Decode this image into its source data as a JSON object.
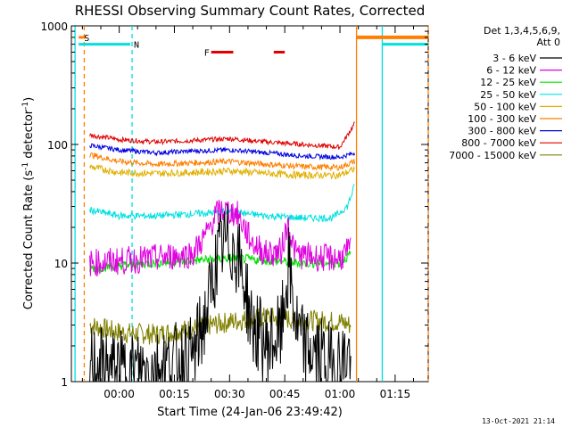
{
  "chart_data": {
    "type": "line",
    "title": "RHESSI Observing Summary Count Rates, Corrected",
    "xlabel": "Start Time (24-Jan-06 23:49:42)",
    "ylabel_main": "Corrected Count Rate (s",
    "ylabel_sup1": "-1",
    "ylabel_mid": " detector",
    "ylabel_sup2": "-1",
    "ylabel_end": ")",
    "yscale": "log",
    "ylim": [
      1,
      1000
    ],
    "xlim_minutes": [
      -13,
      84
    ],
    "x_ticks": [
      {
        "label": "00:00",
        "t": 0
      },
      {
        "label": "00:15",
        "t": 15
      },
      {
        "label": "00:30",
        "t": 30
      },
      {
        "label": "00:45",
        "t": 45
      },
      {
        "label": "01:00",
        "t": 60
      },
      {
        "label": "01:15",
        "t": 75
      }
    ],
    "y_ticks": [
      {
        "label": "1",
        "v": 1
      },
      {
        "label": "10",
        "v": 10
      },
      {
        "label": "100",
        "v": 100
      },
      {
        "label": "1000",
        "v": 1000
      }
    ],
    "legend": {
      "header1": "Det 1,3,4,5,6,9,",
      "header2": "Att 0",
      "placement": "right"
    },
    "series": [
      {
        "name": "3 - 6 keV",
        "color": "#000000",
        "x": [
          -8,
          0,
          10,
          20,
          24,
          26,
          28,
          30,
          32,
          34,
          36,
          40,
          44,
          45,
          46,
          47,
          48,
          50,
          56,
          60,
          63
        ],
        "y": [
          1.4,
          1.2,
          1.3,
          1.6,
          4,
          9,
          14,
          15,
          12,
          7,
          3,
          2,
          2.5,
          5,
          9,
          6,
          3,
          2,
          1.5,
          1.4,
          1.8
        ]
      },
      {
        "name": "6 - 12 keV",
        "color": "#e000e0",
        "x": [
          -8,
          2,
          10,
          20,
          24,
          26,
          28,
          30,
          32,
          34,
          36,
          40,
          44,
          45,
          46,
          47,
          48,
          50,
          56,
          60,
          63
        ],
        "y": [
          10,
          10.5,
          11,
          12,
          18,
          25,
          28,
          27,
          26,
          20,
          15,
          12,
          12.5,
          17,
          22,
          15,
          12,
          11.5,
          11,
          11,
          13
        ]
      },
      {
        "name": "12 - 25 keV",
        "color": "#00e000",
        "x": [
          -8,
          0,
          10,
          20,
          30,
          40,
          50,
          60,
          63
        ],
        "y": [
          9,
          9.5,
          10,
          10.5,
          11,
          10.5,
          10,
          10,
          12
        ]
      },
      {
        "name": "25 - 50 keV",
        "color": "#00e0e0",
        "x": [
          -8,
          0,
          10,
          20,
          30,
          40,
          50,
          58,
          62,
          64
        ],
        "y": [
          28,
          25,
          25,
          26,
          27,
          25,
          24,
          24,
          30,
          45
        ]
      },
      {
        "name": "50 - 100 keV",
        "color": "#e0b000",
        "x": [
          -8,
          0,
          10,
          20,
          30,
          40,
          50,
          60,
          64
        ],
        "y": [
          65,
          58,
          57,
          58,
          60,
          57,
          55,
          55,
          62
        ]
      },
      {
        "name": "100 - 300 keV",
        "color": "#ff7f00",
        "x": [
          -8,
          0,
          10,
          20,
          30,
          40,
          50,
          60,
          64
        ],
        "y": [
          82,
          72,
          68,
          70,
          72,
          68,
          65,
          64,
          72
        ]
      },
      {
        "name": "300 - 800 keV",
        "color": "#0000e0",
        "x": [
          -8,
          0,
          10,
          20,
          30,
          40,
          50,
          60,
          64
        ],
        "y": [
          98,
          90,
          85,
          88,
          90,
          85,
          80,
          78,
          85
        ]
      },
      {
        "name": "800 - 7000 keV",
        "color": "#e00000",
        "x": [
          -8,
          0,
          10,
          20,
          30,
          40,
          50,
          60,
          64
        ],
        "y": [
          120,
          110,
          105,
          108,
          112,
          105,
          100,
          95,
          150
        ]
      },
      {
        "name": "7000 - 15000 keV",
        "color": "#808000",
        "x": [
          -8,
          0,
          10,
          20,
          30,
          40,
          50,
          60,
          63
        ],
        "y": [
          3,
          2.6,
          2.5,
          2.8,
          3.2,
          3.5,
          3.3,
          3.2,
          3
        ]
      }
    ],
    "flags": [
      {
        "label": "S",
        "color": "#ff7f00",
        "x": [
          -11,
          -9
        ],
        "v": 800
      },
      {
        "label": "N",
        "color": "#00e0e0",
        "x": [
          -11,
          3
        ],
        "v": 700
      },
      {
        "label": "F",
        "color": "#e00000",
        "x": [
          25,
          31
        ],
        "v": 600
      },
      {
        "label": "",
        "color": "#e00000",
        "x": [
          42,
          45
        ],
        "v": 600
      }
    ],
    "vertical_lines": [
      {
        "t": -12,
        "color": "#00e0e0",
        "style": "solid"
      },
      {
        "t": -9.5,
        "color": "#ff7f00",
        "style": "dashed"
      },
      {
        "t": 3.5,
        "color": "#00e0e0",
        "style": "dashed"
      },
      {
        "t": 64.5,
        "color": "#ff7f00",
        "style": "solid"
      },
      {
        "t": 71.5,
        "color": "#00e0e0",
        "style": "solid"
      },
      {
        "t": 84,
        "color": "#ff7f00",
        "style": "dashed"
      }
    ],
    "orange_top_band": {
      "x": [
        64.5,
        84
      ],
      "v": 800,
      "color": "#ff7f00"
    },
    "cyan_top_band": {
      "x": [
        71.5,
        84
      ],
      "v": 700,
      "color": "#00e0e0"
    }
  },
  "footer": {
    "date": "13-Oct-2021 21:14"
  }
}
